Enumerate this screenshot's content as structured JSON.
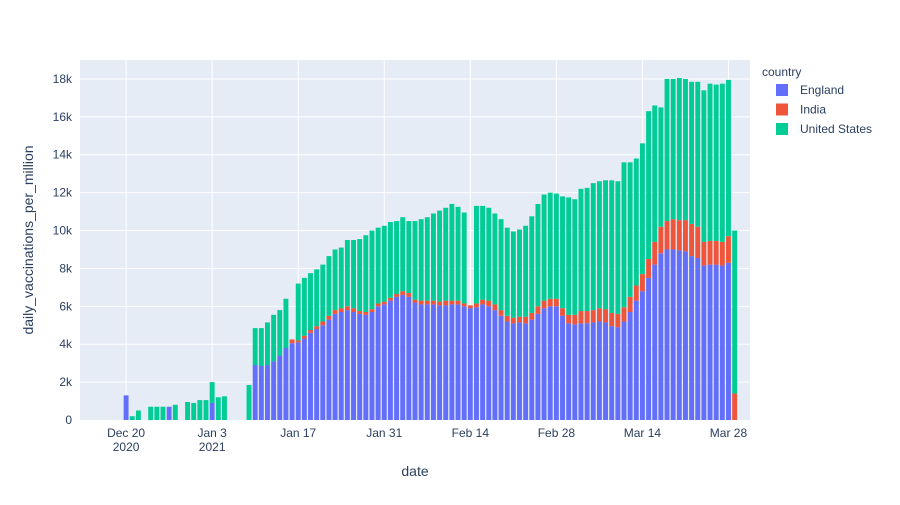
{
  "chart_data": {
    "type": "bar",
    "barmode": "stack",
    "xlabel": "date",
    "ylabel": "daily_vaccinations_per_million",
    "x_start": "2020-12-13",
    "x_end": "2021-04-01",
    "ylim": [
      0,
      19000
    ],
    "y_ticks": [
      {
        "value": 0,
        "label": "0"
      },
      {
        "value": 2000,
        "label": "2k"
      },
      {
        "value": 4000,
        "label": "4k"
      },
      {
        "value": 6000,
        "label": "6k"
      },
      {
        "value": 8000,
        "label": "8k"
      },
      {
        "value": 10000,
        "label": "10k"
      },
      {
        "value": 12000,
        "label": "12k"
      },
      {
        "value": 14000,
        "label": "14k"
      },
      {
        "value": 16000,
        "label": "16k"
      },
      {
        "value": 18000,
        "label": "18k"
      }
    ],
    "x_ticks": [
      {
        "date": "2020-12-20",
        "label": "Dec 20",
        "label2": "2020"
      },
      {
        "date": "2021-01-03",
        "label": "Jan 3",
        "label2": "2021"
      },
      {
        "date": "2021-01-17",
        "label": "Jan 17",
        "label2": ""
      },
      {
        "date": "2021-01-31",
        "label": "Jan 31",
        "label2": ""
      },
      {
        "date": "2021-02-14",
        "label": "Feb 14",
        "label2": ""
      },
      {
        "date": "2021-02-28",
        "label": "Feb 28",
        "label2": ""
      },
      {
        "date": "2021-03-14",
        "label": "Mar 14",
        "label2": ""
      },
      {
        "date": "2021-03-28",
        "label": "Mar 28",
        "label2": ""
      }
    ],
    "grid": true,
    "legend": {
      "title": "country",
      "position": "right",
      "entries": [
        "England",
        "India",
        "United States"
      ]
    },
    "colors": {
      "England": "#636efa",
      "India": "#ef553b",
      "United States": "#00cc96"
    },
    "series": [
      {
        "name": "England",
        "points": [
          [
            "2020-12-20",
            1300
          ],
          [
            "2020-12-27",
            700
          ],
          [
            "2021-01-03",
            900
          ],
          [
            "2021-01-10",
            2900
          ],
          [
            "2021-01-11",
            2850
          ],
          [
            "2021-01-12",
            2900
          ],
          [
            "2021-01-13",
            3100
          ],
          [
            "2021-01-14",
            3400
          ],
          [
            "2021-01-15",
            3800
          ],
          [
            "2021-01-16",
            4050
          ],
          [
            "2021-01-17",
            4100
          ],
          [
            "2021-01-18",
            4300
          ],
          [
            "2021-01-19",
            4600
          ],
          [
            "2021-01-20",
            4800
          ],
          [
            "2021-01-21",
            5000
          ],
          [
            "2021-01-22",
            5300
          ],
          [
            "2021-01-23",
            5600
          ],
          [
            "2021-01-24",
            5700
          ],
          [
            "2021-01-25",
            5800
          ],
          [
            "2021-01-26",
            5700
          ],
          [
            "2021-01-27",
            5600
          ],
          [
            "2021-01-28",
            5550
          ],
          [
            "2021-01-29",
            5700
          ],
          [
            "2021-01-30",
            6000
          ],
          [
            "2021-01-31",
            6100
          ],
          [
            "2021-02-01",
            6300
          ],
          [
            "2021-02-02",
            6500
          ],
          [
            "2021-02-03",
            6600
          ],
          [
            "2021-02-04",
            6500
          ],
          [
            "2021-02-05",
            6200
          ],
          [
            "2021-02-06",
            6100
          ],
          [
            "2021-02-07",
            6100
          ],
          [
            "2021-02-08",
            6100
          ],
          [
            "2021-02-09",
            6050
          ],
          [
            "2021-02-10",
            6050
          ],
          [
            "2021-02-11",
            6100
          ],
          [
            "2021-02-12",
            6100
          ],
          [
            "2021-02-13",
            6000
          ],
          [
            "2021-02-14",
            5900
          ],
          [
            "2021-02-15",
            5950
          ],
          [
            "2021-02-16",
            6100
          ],
          [
            "2021-02-17",
            6000
          ],
          [
            "2021-02-18",
            5800
          ],
          [
            "2021-02-19",
            5500
          ],
          [
            "2021-02-20",
            5200
          ],
          [
            "2021-02-21",
            5100
          ],
          [
            "2021-02-22",
            5150
          ],
          [
            "2021-02-23",
            5100
          ],
          [
            "2021-02-24",
            5300
          ],
          [
            "2021-02-25",
            5600
          ],
          [
            "2021-02-26",
            5900
          ],
          [
            "2021-02-27",
            6000
          ],
          [
            "2021-02-28",
            6000
          ],
          [
            "2021-03-01",
            5500
          ],
          [
            "2021-03-02",
            5100
          ],
          [
            "2021-03-03",
            5050
          ],
          [
            "2021-03-04",
            5100
          ],
          [
            "2021-03-05",
            5100
          ],
          [
            "2021-03-06",
            5150
          ],
          [
            "2021-03-07",
            5200
          ],
          [
            "2021-03-08",
            5150
          ],
          [
            "2021-03-09",
            4950
          ],
          [
            "2021-03-10",
            4900
          ],
          [
            "2021-03-11",
            5200
          ],
          [
            "2021-03-12",
            5700
          ],
          [
            "2021-03-13",
            6300
          ],
          [
            "2021-03-14",
            6800
          ],
          [
            "2021-03-15",
            7500
          ],
          [
            "2021-03-16",
            8200
          ],
          [
            "2021-03-17",
            8800
          ],
          [
            "2021-03-18",
            9000
          ],
          [
            "2021-03-19",
            9000
          ],
          [
            "2021-03-20",
            8950
          ],
          [
            "2021-03-21",
            8900
          ],
          [
            "2021-03-22",
            8650
          ],
          [
            "2021-03-23",
            8550
          ],
          [
            "2021-03-24",
            8150
          ],
          [
            "2021-03-25",
            8200
          ],
          [
            "2021-03-26",
            8200
          ],
          [
            "2021-03-27",
            8150
          ],
          [
            "2021-03-28",
            8300
          ]
        ]
      },
      {
        "name": "India",
        "points": [
          [
            "2021-01-16",
            200
          ],
          [
            "2021-01-17",
            100
          ],
          [
            "2021-01-18",
            150
          ],
          [
            "2021-01-19",
            150
          ],
          [
            "2021-01-20",
            150
          ],
          [
            "2021-01-21",
            200
          ],
          [
            "2021-01-22",
            200
          ],
          [
            "2021-01-23",
            200
          ],
          [
            "2021-01-24",
            200
          ],
          [
            "2021-01-25",
            200
          ],
          [
            "2021-01-26",
            200
          ],
          [
            "2021-01-27",
            150
          ],
          [
            "2021-01-28",
            150
          ],
          [
            "2021-01-29",
            150
          ],
          [
            "2021-01-30",
            150
          ],
          [
            "2021-01-31",
            150
          ],
          [
            "2021-02-01",
            150
          ],
          [
            "2021-02-02",
            150
          ],
          [
            "2021-02-03",
            200
          ],
          [
            "2021-02-04",
            200
          ],
          [
            "2021-02-05",
            150
          ],
          [
            "2021-02-06",
            200
          ],
          [
            "2021-02-07",
            200
          ],
          [
            "2021-02-08",
            200
          ],
          [
            "2021-02-09",
            200
          ],
          [
            "2021-02-10",
            250
          ],
          [
            "2021-02-11",
            200
          ],
          [
            "2021-02-12",
            200
          ],
          [
            "2021-02-13",
            150
          ],
          [
            "2021-02-14",
            150
          ],
          [
            "2021-02-15",
            200
          ],
          [
            "2021-02-16",
            250
          ],
          [
            "2021-02-17",
            300
          ],
          [
            "2021-02-18",
            300
          ],
          [
            "2021-02-19",
            300
          ],
          [
            "2021-02-20",
            300
          ],
          [
            "2021-02-21",
            300
          ],
          [
            "2021-02-22",
            300
          ],
          [
            "2021-02-23",
            350
          ],
          [
            "2021-02-24",
            350
          ],
          [
            "2021-02-25",
            400
          ],
          [
            "2021-02-26",
            400
          ],
          [
            "2021-02-27",
            400
          ],
          [
            "2021-02-28",
            400
          ],
          [
            "2021-03-01",
            400
          ],
          [
            "2021-03-02",
            450
          ],
          [
            "2021-03-03",
            500
          ],
          [
            "2021-03-04",
            650
          ],
          [
            "2021-03-05",
            650
          ],
          [
            "2021-03-06",
            650
          ],
          [
            "2021-03-07",
            700
          ],
          [
            "2021-03-08",
            700
          ],
          [
            "2021-03-09",
            700
          ],
          [
            "2021-03-10",
            700
          ],
          [
            "2021-03-11",
            750
          ],
          [
            "2021-03-12",
            800
          ],
          [
            "2021-03-13",
            800
          ],
          [
            "2021-03-14",
            900
          ],
          [
            "2021-03-15",
            1000
          ],
          [
            "2021-03-16",
            1200
          ],
          [
            "2021-03-17",
            1400
          ],
          [
            "2021-03-18",
            1500
          ],
          [
            "2021-03-19",
            1600
          ],
          [
            "2021-03-20",
            1600
          ],
          [
            "2021-03-21",
            1650
          ],
          [
            "2021-03-22",
            1700
          ],
          [
            "2021-03-23",
            1650
          ],
          [
            "2021-03-24",
            1250
          ],
          [
            "2021-03-25",
            1250
          ],
          [
            "2021-03-26",
            1250
          ],
          [
            "2021-03-27",
            1250
          ],
          [
            "2021-03-28",
            1400
          ],
          [
            "2021-03-29",
            1400
          ]
        ]
      },
      {
        "name": "United States",
        "points": [
          [
            "2020-12-21",
            200
          ],
          [
            "2020-12-22",
            500
          ],
          [
            "2020-12-24",
            700
          ],
          [
            "2020-12-25",
            700
          ],
          [
            "2020-12-26",
            700
          ],
          [
            "2020-12-28",
            800
          ],
          [
            "2020-12-30",
            950
          ],
          [
            "2020-12-31",
            900
          ],
          [
            "2021-01-01",
            1050
          ],
          [
            "2021-01-02",
            1050
          ],
          [
            "2021-01-03",
            1100
          ],
          [
            "2021-01-04",
            1200
          ],
          [
            "2021-01-05",
            1250
          ],
          [
            "2021-01-09",
            1850
          ],
          [
            "2021-01-10",
            1950
          ],
          [
            "2021-01-11",
            2000
          ],
          [
            "2021-01-12",
            2250
          ],
          [
            "2021-01-13",
            2450
          ],
          [
            "2021-01-14",
            2400
          ],
          [
            "2021-01-15",
            2600
          ],
          [
            "2021-01-17",
            3000
          ],
          [
            "2021-01-18",
            3050
          ],
          [
            "2021-01-19",
            3000
          ],
          [
            "2021-01-20",
            3000
          ],
          [
            "2021-01-21",
            3000
          ],
          [
            "2021-01-22",
            3150
          ],
          [
            "2021-01-23",
            3200
          ],
          [
            "2021-01-24",
            3200
          ],
          [
            "2021-01-25",
            3500
          ],
          [
            "2021-01-26",
            3600
          ],
          [
            "2021-01-27",
            3800
          ],
          [
            "2021-01-28",
            4050
          ],
          [
            "2021-01-29",
            4150
          ],
          [
            "2021-01-30",
            4000
          ],
          [
            "2021-01-31",
            4000
          ],
          [
            "2021-02-01",
            4000
          ],
          [
            "2021-02-02",
            3850
          ],
          [
            "2021-02-03",
            3900
          ],
          [
            "2021-02-04",
            3800
          ],
          [
            "2021-02-05",
            4150
          ],
          [
            "2021-02-06",
            4300
          ],
          [
            "2021-02-07",
            4400
          ],
          [
            "2021-02-08",
            4600
          ],
          [
            "2021-02-09",
            4800
          ],
          [
            "2021-02-10",
            4900
          ],
          [
            "2021-02-11",
            5100
          ],
          [
            "2021-02-12",
            4950
          ],
          [
            "2021-02-13",
            4800
          ],
          [
            "2021-02-15",
            5150
          ],
          [
            "2021-02-16",
            4950
          ],
          [
            "2021-02-17",
            4900
          ],
          [
            "2021-02-18",
            4800
          ],
          [
            "2021-02-19",
            4800
          ],
          [
            "2021-02-20",
            4650
          ],
          [
            "2021-02-21",
            4550
          ],
          [
            "2021-02-22",
            4600
          ],
          [
            "2021-02-23",
            4800
          ],
          [
            "2021-02-24",
            5100
          ],
          [
            "2021-02-25",
            5400
          ],
          [
            "2021-02-26",
            5600
          ],
          [
            "2021-02-27",
            5600
          ],
          [
            "2021-02-28",
            5550
          ],
          [
            "2021-03-01",
            5900
          ],
          [
            "2021-03-02",
            6200
          ],
          [
            "2021-03-03",
            6100
          ],
          [
            "2021-03-04",
            6450
          ],
          [
            "2021-03-05",
            6500
          ],
          [
            "2021-03-06",
            6700
          ],
          [
            "2021-03-07",
            6700
          ],
          [
            "2021-03-08",
            6800
          ],
          [
            "2021-03-09",
            7000
          ],
          [
            "2021-03-10",
            7000
          ],
          [
            "2021-03-11",
            7650
          ],
          [
            "2021-03-12",
            7100
          ],
          [
            "2021-03-13",
            6700
          ],
          [
            "2021-03-14",
            6900
          ],
          [
            "2021-03-15",
            7800
          ],
          [
            "2021-03-16",
            7200
          ],
          [
            "2021-03-17",
            6300
          ],
          [
            "2021-03-18",
            7500
          ],
          [
            "2021-03-19",
            7400
          ],
          [
            "2021-03-20",
            7500
          ],
          [
            "2021-03-21",
            7450
          ],
          [
            "2021-03-22",
            7500
          ],
          [
            "2021-03-23",
            7650
          ],
          [
            "2021-03-24",
            8000
          ],
          [
            "2021-03-25",
            8300
          ],
          [
            "2021-03-26",
            8250
          ],
          [
            "2021-03-27",
            8350
          ],
          [
            "2021-03-28",
            8250
          ],
          [
            "2021-03-29",
            8600
          ]
        ]
      }
    ]
  }
}
